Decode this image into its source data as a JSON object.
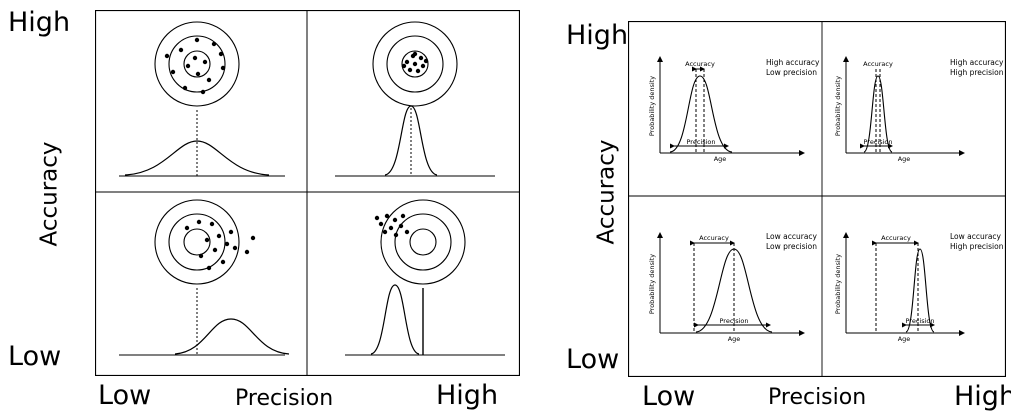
{
  "left": {
    "high_y": "High",
    "low_y": "Low",
    "low_x": "Low",
    "high_x": "High",
    "y_axis": "Accuracy",
    "x_axis": "Precision"
  },
  "right": {
    "high_y": "High",
    "low_y": "Low",
    "low_x": "Low",
    "high_x": "High",
    "y_axis": "Accuracy",
    "x_axis": "Precision",
    "panels": [
      {
        "line1": "High accuracy",
        "line2": "Low precision",
        "accuracy": "Accuracy",
        "precision": "Precision",
        "ylabel": "Probability density",
        "xlabel": "Age"
      },
      {
        "line1": "High accuracy",
        "line2": "High precision",
        "accuracy": "Accuracy",
        "precision": "Precision",
        "ylabel": "Probability density",
        "xlabel": "Age"
      },
      {
        "line1": "Low accuracy",
        "line2": "Low precision",
        "accuracy": "Accuracy",
        "precision": "Precision",
        "ylabel": "Probability density",
        "xlabel": "Age"
      },
      {
        "line1": "Low accuracy",
        "line2": "High precision",
        "accuracy": "Accuracy",
        "precision": "Precision",
        "ylabel": "Probability density",
        "xlabel": "Age"
      }
    ]
  }
}
